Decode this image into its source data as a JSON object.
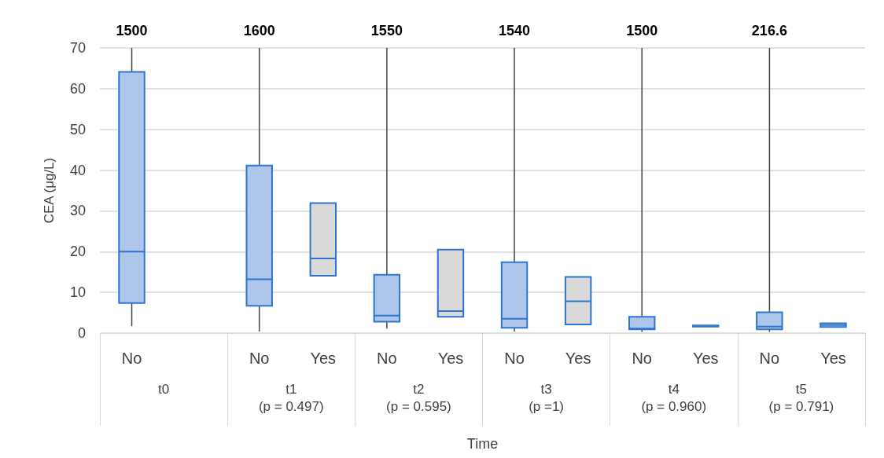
{
  "chart_data": {
    "type": "box",
    "xlabel": "Time",
    "ylabel": "CEA (μg/L)",
    "categories": [
      "t0",
      "t1\n(p = 0.497)",
      "t2\n(p = 0.595)",
      "t3\n(p =1)",
      "t4\n(p = 0.960)",
      "t5\n(p = 0.791)"
    ],
    "annotations": [
      "1500",
      "1600",
      "1550",
      "1540",
      "1500",
      "216.6"
    ],
    "ylim": [
      0,
      70
    ],
    "yticks": [
      0,
      10,
      20,
      30,
      40,
      50,
      60,
      70
    ],
    "grid": "y",
    "series": [
      {
        "name": "No",
        "color": "#aec6e9",
        "boxes": [
          {
            "low": 1.7,
            "q1": 7.4,
            "median": 20,
            "q3": 64.1,
            "high": 1500
          },
          {
            "low": 0.4,
            "q1": 6.7,
            "median": 13.2,
            "q3": 41.1,
            "high": 1600
          },
          {
            "low": 1.1,
            "q1": 2.8,
            "median": 4.3,
            "q3": 14.3,
            "high": 1550
          },
          {
            "low": 0.4,
            "q1": 1.3,
            "median": 3.5,
            "q3": 17.4,
            "high": 1540
          },
          {
            "low": 0.3,
            "q1": 0.9,
            "median": 1.1,
            "q3": 4.0,
            "high": 1500
          },
          {
            "low": 0.3,
            "q1": 0.9,
            "median": 1.6,
            "q3": 5.1,
            "high": 216.6
          }
        ]
      },
      {
        "name": "Yes",
        "color": "#d9d9d9",
        "boxes": [
          null,
          {
            "low": 14.1,
            "q1": 14.1,
            "median": 18.3,
            "q3": 31.9,
            "high": 31.9
          },
          {
            "low": 4.0,
            "q1": 4.0,
            "median": 5.4,
            "q3": 20.5,
            "high": 20.5
          },
          {
            "low": 2.1,
            "q1": 2.1,
            "median": 7.8,
            "q3": 13.8,
            "high": 13.8
          },
          {
            "low": 1.6,
            "q1": 1.6,
            "median": 1.7,
            "q3": 1.9,
            "high": 1.9
          },
          {
            "low": 1.5,
            "q1": 1.5,
            "median": 2.0,
            "q3": 2.4,
            "high": 2.4
          }
        ]
      }
    ]
  }
}
